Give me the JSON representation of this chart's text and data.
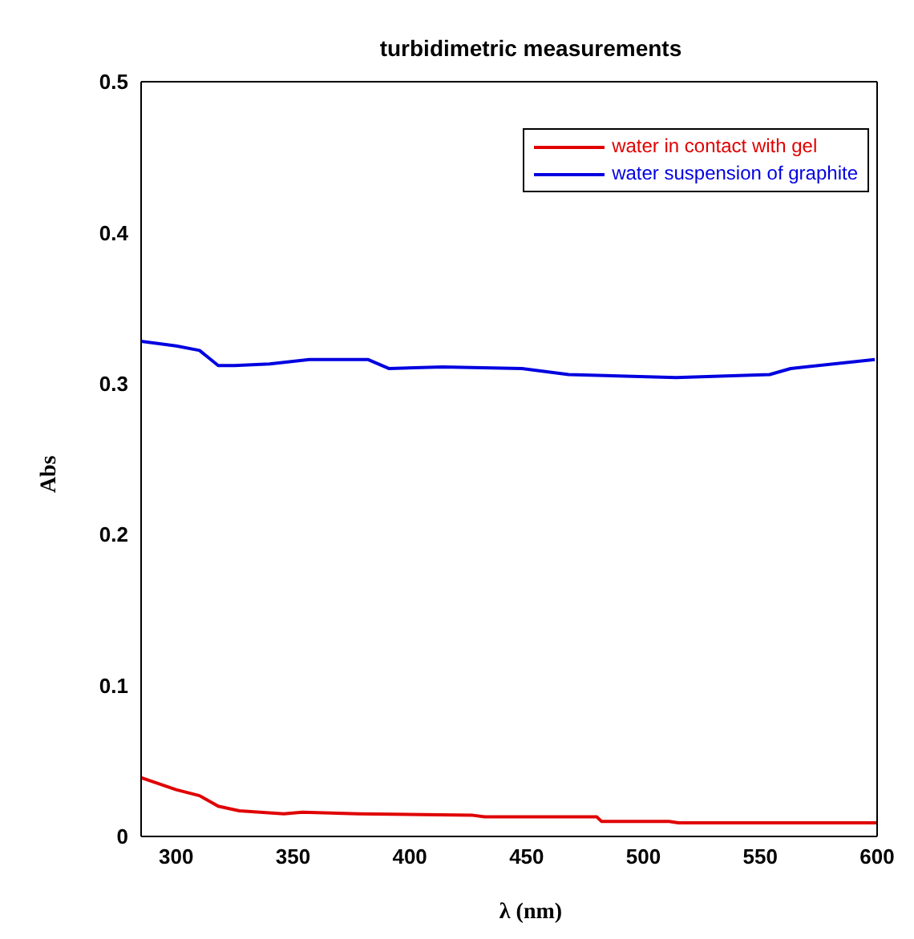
{
  "chart_data": {
    "type": "line",
    "title": "turbidimetric measurements",
    "xlabel": "λ (nm)",
    "ylabel": "Abs",
    "xlim": [
      285,
      600
    ],
    "xticks": [
      300,
      350,
      400,
      450,
      500,
      550,
      600
    ],
    "ylim": [
      0,
      0.5
    ],
    "yticks": [
      0,
      0.1,
      0.2,
      0.3,
      0.4,
      0.5
    ],
    "legend": "top right",
    "marker": "none",
    "line_style": "solid",
    "series": [
      {
        "name": "water in contact with gel",
        "color": "#e00000",
        "x": [
          285,
          300,
          310,
          318,
          327,
          346,
          354,
          378,
          427,
          432,
          480,
          482,
          511,
          515,
          600
        ],
        "values": [
          0.039,
          0.031,
          0.027,
          0.02,
          0.017,
          0.015,
          0.016,
          0.015,
          0.014,
          0.013,
          0.013,
          0.01,
          0.01,
          0.009,
          0.009
        ]
      },
      {
        "name": "water suspension of graphite",
        "color": "#0000e0",
        "x": [
          285,
          300,
          310,
          318,
          325,
          340,
          357,
          382,
          391,
          414,
          448,
          468,
          514,
          554,
          563,
          599
        ],
        "values": [
          0.328,
          0.325,
          0.322,
          0.312,
          0.312,
          0.313,
          0.316,
          0.316,
          0.31,
          0.311,
          0.31,
          0.306,
          0.304,
          0.306,
          0.31,
          0.316
        ]
      }
    ]
  }
}
